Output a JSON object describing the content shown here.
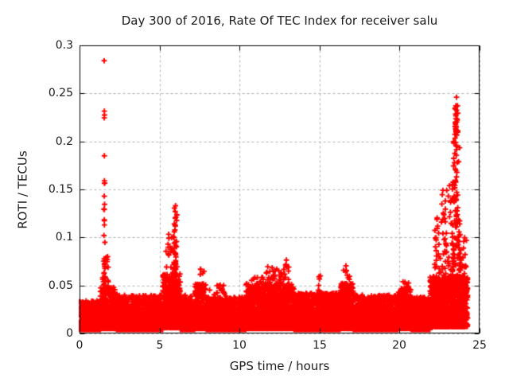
{
  "figure": {
    "background": "#ffffff"
  },
  "chart_data": {
    "type": "scatter",
    "title": "Day 300 of 2016, Rate Of TEC Index for receiver salu",
    "xlabel": "GPS time / hours",
    "ylabel": "ROTI / TECUs",
    "xlim": [
      0,
      25
    ],
    "ylim": [
      0,
      0.3
    ],
    "xticks": [
      0,
      5,
      10,
      15,
      20,
      25
    ],
    "xtick_labels": [
      "0",
      "5",
      "10",
      "15",
      "20",
      "25"
    ],
    "yticks": [
      0,
      0.05,
      0.1,
      0.15,
      0.2,
      0.25,
      0.3
    ],
    "ytick_labels": [
      "0",
      "0.05",
      "0.1",
      "0.15",
      "0.2",
      "0.25",
      "0.3"
    ],
    "grid": true,
    "legend_position": "none",
    "marker": "plus",
    "colors": {
      "points": "#ff0000",
      "grid": "#b3b3b3",
      "frame": "#000000",
      "text": "#1c1c1c"
    },
    "time_range_hours": [
      0,
      24.25
    ],
    "notable_points": [
      [
        1.54,
        0.284
      ],
      [
        1.55,
        0.2315
      ],
      [
        1.56,
        0.2275
      ],
      [
        1.545,
        0.2245
      ],
      [
        1.55,
        0.185
      ],
      [
        1.555,
        0.159
      ],
      [
        1.545,
        0.143
      ],
      [
        1.55,
        0.1175
      ],
      [
        1.555,
        0.113
      ],
      [
        6.0,
        0.133
      ],
      [
        5.98,
        0.127
      ],
      [
        6.02,
        0.121
      ],
      [
        7.56,
        0.067
      ],
      [
        12.32,
        0.067
      ],
      [
        12.93,
        0.0765
      ],
      [
        15.05,
        0.06
      ],
      [
        16.65,
        0.0705
      ],
      [
        16.66,
        0.0655
      ],
      [
        23.56,
        0.246
      ],
      [
        23.52,
        0.237
      ],
      [
        23.56,
        0.2325
      ],
      [
        23.58,
        0.229
      ],
      [
        23.5,
        0.218
      ],
      [
        23.54,
        0.212
      ],
      [
        23.57,
        0.2065
      ],
      [
        23.53,
        0.196
      ],
      [
        23.56,
        0.1915
      ],
      [
        23.55,
        0.1855
      ],
      [
        23.6,
        0.178
      ],
      [
        23.52,
        0.17
      ],
      [
        23.56,
        0.163
      ],
      [
        23.3,
        0.155
      ],
      [
        23.42,
        0.152
      ],
      [
        22.95,
        0.149
      ],
      [
        23.05,
        0.143
      ],
      [
        22.86,
        0.138
      ]
    ],
    "point_distribution": {
      "note": "dense scatter approximated by segments; entry format [t_start, t_end, n_points, roti_min, roti_max, skew_exponent]",
      "seed": 300,
      "band_segments": [
        [
          0.0,
          1.3,
          620,
          0.004,
          0.034,
          2.6
        ],
        [
          1.3,
          2.3,
          520,
          0.005,
          0.048,
          2.4
        ],
        [
          2.3,
          5.2,
          1450,
          0.004,
          0.04,
          2.7
        ],
        [
          5.2,
          6.3,
          560,
          0.006,
          0.062,
          2.2
        ],
        [
          6.3,
          7.2,
          430,
          0.004,
          0.04,
          2.5
        ],
        [
          7.2,
          7.9,
          360,
          0.005,
          0.052,
          2.3
        ],
        [
          7.9,
          10.4,
          1200,
          0.004,
          0.038,
          2.6
        ],
        [
          10.4,
          13.4,
          1450,
          0.005,
          0.052,
          2.4
        ],
        [
          13.4,
          16.3,
          1400,
          0.004,
          0.042,
          2.6
        ],
        [
          16.3,
          17.1,
          390,
          0.005,
          0.052,
          2.3
        ],
        [
          17.1,
          19.9,
          1300,
          0.004,
          0.04,
          2.6
        ],
        [
          19.9,
          20.7,
          390,
          0.005,
          0.048,
          2.3
        ],
        [
          20.7,
          21.9,
          560,
          0.004,
          0.038,
          2.6
        ],
        [
          21.9,
          24.25,
          1150,
          0.007,
          0.06,
          2.0
        ]
      ],
      "clusters": [
        [
          1.5,
          1.63,
          30,
          0.03,
          0.16,
          1.6
        ],
        [
          1.42,
          1.8,
          45,
          0.028,
          0.08,
          1.8
        ],
        [
          5.9,
          6.1,
          30,
          0.06,
          0.135,
          1.5
        ],
        [
          5.4,
          6.05,
          70,
          0.038,
          0.112,
          1.9
        ],
        [
          7.35,
          7.8,
          28,
          0.038,
          0.068,
          1.6
        ],
        [
          8.1,
          9.4,
          30,
          0.032,
          0.052,
          1.6
        ],
        [
          10.6,
          11.6,
          40,
          0.034,
          0.06,
          1.6
        ],
        [
          11.6,
          12.35,
          45,
          0.036,
          0.07,
          1.6
        ],
        [
          12.4,
          13.3,
          50,
          0.038,
          0.072,
          1.6
        ],
        [
          14.9,
          15.15,
          12,
          0.034,
          0.06,
          1.5
        ],
        [
          16.5,
          16.9,
          20,
          0.036,
          0.066,
          1.5
        ],
        [
          20.0,
          20.6,
          28,
          0.032,
          0.056,
          1.6
        ],
        [
          22.15,
          23.4,
          130,
          0.04,
          0.155,
          2.2
        ],
        [
          23.3,
          23.78,
          95,
          0.05,
          0.2,
          1.5
        ],
        [
          23.46,
          23.64,
          26,
          0.193,
          0.24,
          1.0
        ],
        [
          23.7,
          24.25,
          60,
          0.035,
          0.105,
          1.7
        ]
      ]
    }
  }
}
